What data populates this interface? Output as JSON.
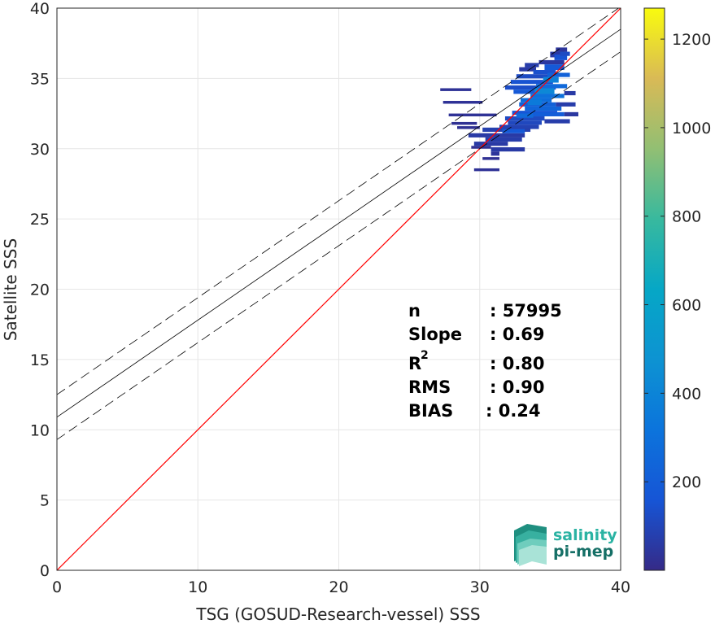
{
  "chart_data": {
    "type": "heatmap",
    "xlabel": "TSG (GOSUD-Research-vessel) SSS",
    "ylabel": "Satellite SSS",
    "xlim": [
      0,
      40
    ],
    "ylim": [
      0,
      40
    ],
    "xticks": [
      0,
      10,
      20,
      30,
      40
    ],
    "yticks": [
      0,
      5,
      10,
      15,
      20,
      25,
      30,
      35,
      40
    ],
    "grid": true,
    "colorbar": {
      "range": [
        0,
        1270
      ],
      "ticks": [
        200,
        400,
        600,
        800,
        1000,
        1200
      ],
      "colormap": "parula"
    },
    "identity_line": {
      "color": "#ff0000",
      "from": [
        0,
        0
      ],
      "to": [
        40,
        40
      ]
    },
    "regression": {
      "intercept": 10.9,
      "slope": 0.69,
      "band_offset": 1.6,
      "color": "#000000"
    },
    "density_cells": [
      [
        32.8,
        35.5,
        1.2,
        0.3,
        60
      ],
      [
        33.2,
        35.8,
        1.0,
        0.3,
        70
      ],
      [
        34.2,
        36.0,
        1.8,
        0.3,
        50
      ],
      [
        35.0,
        36.5,
        1.0,
        0.4,
        60
      ],
      [
        35.4,
        36.9,
        0.8,
        0.3,
        40
      ],
      [
        34.6,
        35.6,
        1.4,
        0.4,
        180
      ],
      [
        33.8,
        35.3,
        1.6,
        0.3,
        140
      ],
      [
        32.6,
        35.0,
        2.4,
        0.3,
        120
      ],
      [
        32.2,
        34.6,
        3.0,
        0.3,
        150
      ],
      [
        31.8,
        34.2,
        3.6,
        0.3,
        130
      ],
      [
        32.4,
        33.9,
        2.8,
        0.3,
        180
      ],
      [
        33.6,
        33.6,
        2.4,
        0.3,
        300
      ],
      [
        32.9,
        33.3,
        2.2,
        0.3,
        280
      ],
      [
        32.8,
        33.0,
        2.6,
        0.3,
        220
      ],
      [
        33.2,
        32.7,
        2.6,
        0.3,
        240
      ],
      [
        32.3,
        32.4,
        3.2,
        0.3,
        160
      ],
      [
        31.8,
        32.0,
        2.8,
        0.3,
        120
      ],
      [
        32.0,
        31.7,
        2.4,
        0.3,
        110
      ],
      [
        31.4,
        31.4,
        2.8,
        0.3,
        90
      ],
      [
        30.2,
        31.2,
        3.4,
        0.3,
        80
      ],
      [
        29.2,
        30.8,
        4.0,
        0.3,
        60
      ],
      [
        30.4,
        30.5,
        2.6,
        0.3,
        70
      ],
      [
        29.6,
        30.2,
        2.4,
        0.3,
        60
      ],
      [
        30.8,
        29.8,
        2.4,
        0.3,
        60
      ],
      [
        30.8,
        29.5,
        0.6,
        0.3,
        40
      ],
      [
        27.2,
        34.1,
        2.2,
        0.2,
        30
      ],
      [
        27.4,
        33.2,
        2.8,
        0.2,
        30
      ],
      [
        27.8,
        32.3,
        3.4,
        0.2,
        30
      ],
      [
        28.0,
        31.7,
        1.8,
        0.2,
        25
      ],
      [
        28.4,
        31.4,
        1.6,
        0.2,
        25
      ],
      [
        29.4,
        30.0,
        1.4,
        0.2,
        25
      ],
      [
        30.2,
        29.2,
        1.2,
        0.2,
        25
      ],
      [
        29.6,
        28.4,
        1.8,
        0.2,
        30
      ],
      [
        33.4,
        32.3,
        2.6,
        0.3,
        200
      ],
      [
        34.0,
        34.3,
        2.2,
        0.3,
        260
      ],
      [
        34.8,
        35.1,
        1.6,
        0.3,
        220
      ],
      [
        35.3,
        36.3,
        0.9,
        0.4,
        150
      ],
      [
        35.7,
        36.6,
        0.7,
        0.3,
        120
      ],
      [
        33.9,
        33.9,
        1.4,
        0.4,
        420
      ],
      [
        34.5,
        34.7,
        1.1,
        0.4,
        380
      ],
      [
        32.6,
        32.2,
        1.2,
        0.3,
        260
      ],
      [
        33.4,
        33.1,
        1.0,
        0.4,
        350
      ],
      [
        31.6,
        31.1,
        1.6,
        0.3,
        180
      ],
      [
        34.6,
        31.8,
        1.8,
        0.3,
        70
      ],
      [
        36.0,
        32.3,
        1.0,
        0.3,
        50
      ],
      [
        35.4,
        33.0,
        1.4,
        0.3,
        70
      ],
      [
        36.0,
        33.8,
        0.8,
        0.3,
        60
      ]
    ],
    "stats": [
      {
        "label": "n",
        "value": ": 57995",
        "sup": ""
      },
      {
        "label": "Slope",
        "value": ": 0.69",
        "sup": ""
      },
      {
        "label": "R",
        "value": ": 0.80",
        "sup": "2"
      },
      {
        "label": "RMS",
        "value": ": 0.90",
        "sup": ""
      },
      {
        "label": "BIAS",
        "value": ": 0.24",
        "sup": ""
      }
    ]
  },
  "logo": {
    "line1": "salinity",
    "line2": "pi-mep",
    "color1": "#2bb3a3",
    "color2": "#156f66"
  }
}
